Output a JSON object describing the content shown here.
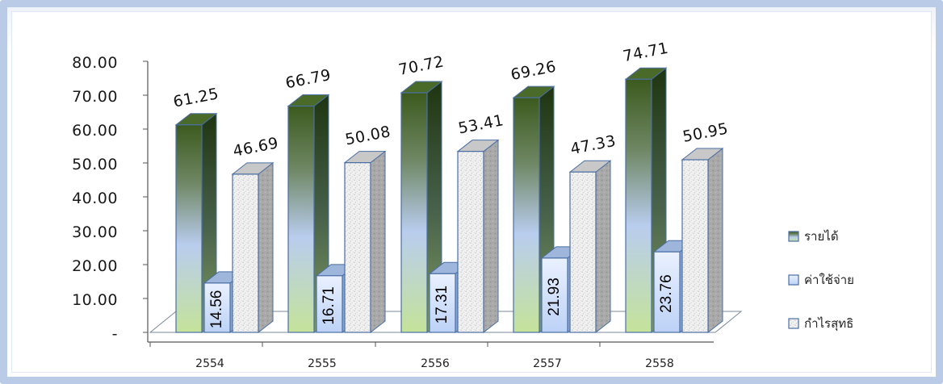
{
  "chart_data": {
    "type": "bar",
    "categories": [
      "2554",
      "2555",
      "2556",
      "2557",
      "2558"
    ],
    "series": [
      {
        "name": "รายได้",
        "values": [
          61.25,
          66.79,
          70.72,
          69.26,
          74.71
        ]
      },
      {
        "name": "ค่าใช้จ่าย",
        "values": [
          14.56,
          16.71,
          17.31,
          21.93,
          23.76
        ]
      },
      {
        "name": "กำไรสุทธิ",
        "values": [
          46.69,
          50.08,
          53.41,
          47.33,
          50.95
        ]
      }
    ],
    "value_labels": [
      [
        "61.25",
        "66.79",
        "70.72",
        "69.26",
        "74.71"
      ],
      [
        "14.56",
        "16.71",
        "17.31",
        "21.93",
        "23.76"
      ],
      [
        "46.69",
        "50.08",
        "53.41",
        "47.33",
        "50.95"
      ]
    ],
    "y_ticks": [
      "-",
      "10.00",
      "20.00",
      "30.00",
      "40.00",
      "50.00",
      "60.00",
      "70.00",
      "80.00"
    ],
    "ylim": [
      0,
      80
    ],
    "grid": false,
    "legend_position": "right",
    "three_d": true
  }
}
